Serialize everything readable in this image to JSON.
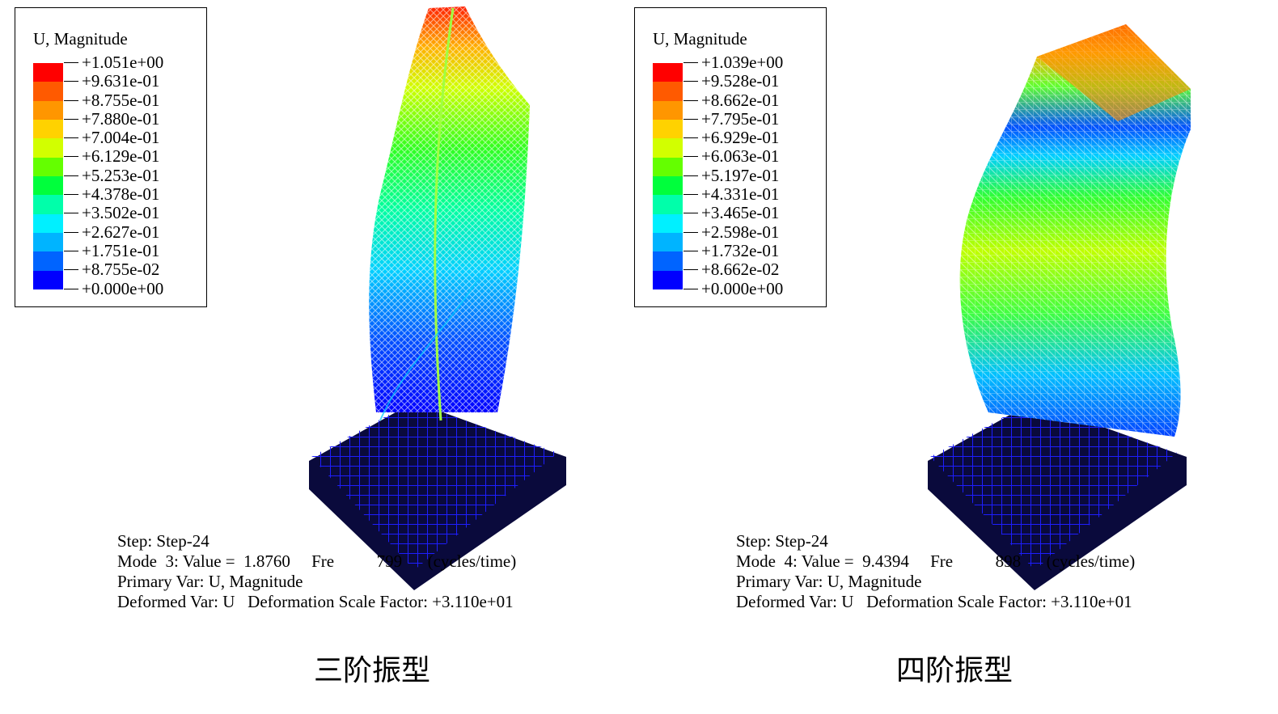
{
  "colors": {
    "scale": [
      "#ff0000",
      "#ff5a00",
      "#ff9600",
      "#ffd200",
      "#d2ff00",
      "#64ff00",
      "#00ff3c",
      "#00ffaa",
      "#00f0ff",
      "#00b4ff",
      "#0064ff",
      "#0000ff"
    ],
    "base_dark": "#0a0a3c"
  },
  "panels": [
    {
      "legend": {
        "title": "U, Magnitude",
        "values": [
          "+1.051e+00",
          "+9.631e-01",
          "+8.755e-01",
          "+7.880e-01",
          "+7.004e-01",
          "+6.129e-01",
          "+5.253e-01",
          "+4.378e-01",
          "+3.502e-01",
          "+2.627e-01",
          "+1.751e-01",
          "+8.755e-02",
          "+0.000e+00"
        ]
      },
      "info": {
        "step": "Step: Step-24",
        "mode": "Mode  3: Value =  1.8760     Fre          799      (cycles/time)",
        "primary_var": "Primary Var: U, Magnitude",
        "deformed": "Deformed Var: U   Deformation Scale Factor: +3.110e+01"
      },
      "caption": "三阶振型"
    },
    {
      "legend": {
        "title": "U, Magnitude",
        "values": [
          "+1.039e+00",
          "+9.528e-01",
          "+8.662e-01",
          "+7.795e-01",
          "+6.929e-01",
          "+6.063e-01",
          "+5.197e-01",
          "+4.331e-01",
          "+3.465e-01",
          "+2.598e-01",
          "+1.732e-01",
          "+8.662e-02",
          "+0.000e+00"
        ]
      },
      "info": {
        "step": "Step: Step-24",
        "mode": "Mode  4: Value =  9.4394     Fre          898      (cycles/time)",
        "primary_var": "Primary Var: U, Magnitude",
        "deformed": "Deformed Var: U   Deformation Scale Factor: +3.110e+01"
      },
      "caption": "四阶振型"
    }
  ]
}
